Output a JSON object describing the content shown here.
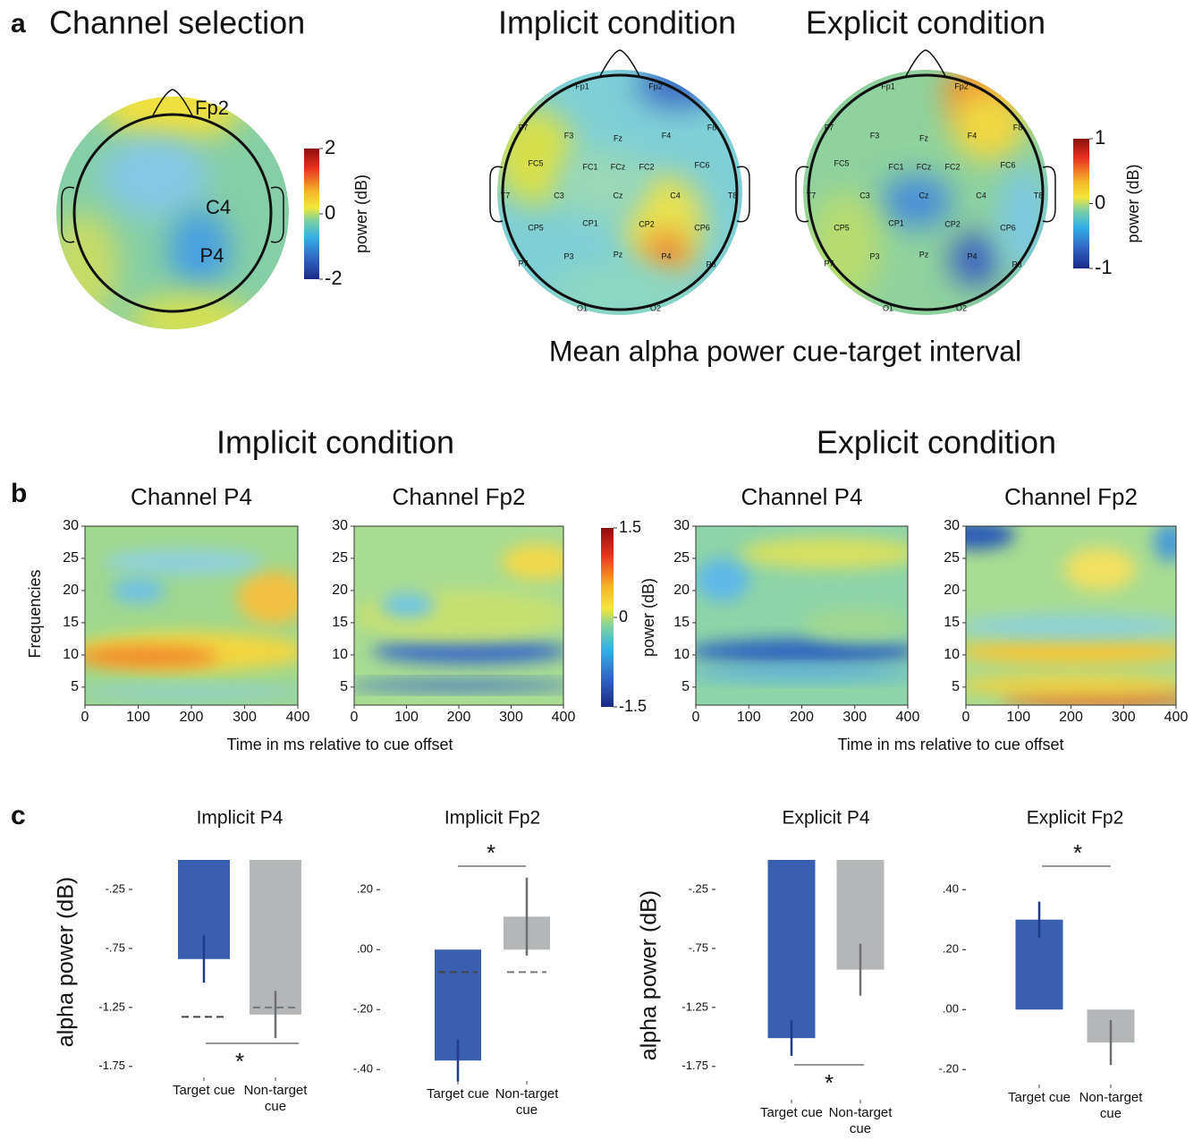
{
  "figure": {
    "panel_labels": [
      "a",
      "b",
      "c"
    ],
    "caption": "Mean alpha power cue-target interval",
    "group_titles": [
      "Implicit condition",
      "Explicit condition"
    ]
  },
  "chart_data": [
    {
      "type": "topomap",
      "title": "Channel selection",
      "channels": [
        "Fp2",
        "C4",
        "P4"
      ],
      "clim": [
        -2,
        2
      ],
      "cticks": [
        -2,
        0,
        2
      ],
      "colorbar_label": "power (dB)"
    },
    {
      "type": "topomap",
      "title": "Implicit condition",
      "channels": [
        "Fp1",
        "Fp2",
        "F7",
        "F3",
        "Fz",
        "F4",
        "F8",
        "FC5",
        "FC1",
        "FCz",
        "FC2",
        "FC6",
        "T7",
        "C3",
        "Cz",
        "C4",
        "T8",
        "CP5",
        "CP1",
        "CP2",
        "CP6",
        "P7",
        "P3",
        "Pz",
        "P4",
        "P8",
        "O1",
        "O2"
      ]
    },
    {
      "type": "topomap",
      "title": "Explicit condition",
      "channels": [
        "Fp1",
        "Fp2",
        "F7",
        "F3",
        "Fz",
        "F4",
        "F8",
        "FC5",
        "FC1",
        "FCz",
        "FC2",
        "FC6",
        "T7",
        "C3",
        "Cz",
        "C4",
        "T8",
        "CP5",
        "CP1",
        "CP2",
        "CP6",
        "P7",
        "P3",
        "Pz",
        "P4",
        "P8",
        "O1",
        "O2"
      ],
      "clim": [
        -1,
        1
      ],
      "cticks": [
        -1,
        0,
        1
      ],
      "colorbar_label": "power (dB)"
    },
    {
      "type": "heatmap",
      "title": "Channel P4",
      "ylabel": "Frequencies",
      "xlabel": "Time in ms relative to cue offset",
      "xlim": [
        0,
        400
      ],
      "xticks": [
        0,
        100,
        200,
        300,
        400
      ],
      "ylim": [
        2.2,
        30
      ],
      "yticks": [
        5,
        10,
        15,
        20,
        25,
        30
      ]
    },
    {
      "type": "heatmap",
      "title": "Channel Fp2",
      "xlim": [
        0,
        400
      ],
      "xticks": [
        0,
        100,
        200,
        300,
        400
      ],
      "ylim": [
        2.2,
        30
      ],
      "yticks": [
        5,
        10,
        15,
        20,
        25,
        30
      ],
      "clim": [
        -1.5,
        1.5
      ],
      "cticks": [
        -1.5,
        0,
        1.5
      ],
      "colorbar_label": "power (dB)"
    },
    {
      "type": "heatmap",
      "title": "Channel P4",
      "xlabel": "Time in ms relative to cue offset",
      "xlim": [
        0,
        400
      ],
      "xticks": [
        0,
        100,
        200,
        300,
        400
      ],
      "ylim": [
        2.2,
        30
      ],
      "yticks": [
        5,
        10,
        15,
        20,
        25,
        30
      ]
    },
    {
      "type": "heatmap",
      "title": "Channel Fp2",
      "xlim": [
        0,
        400
      ],
      "xticks": [
        0,
        100,
        200,
        300,
        400
      ],
      "ylim": [
        2.2,
        30
      ],
      "yticks": [
        5,
        10,
        15,
        20,
        25,
        30
      ]
    },
    {
      "type": "bar",
      "title": "Implicit P4",
      "ylabel": "alpha power (dB)",
      "categories": [
        "Target cue",
        "Non-target cue"
      ],
      "values": [
        -0.84,
        -1.31
      ],
      "errors": [
        0.2,
        0.2
      ],
      "reference_values": [
        -1.33,
        -1.25
      ],
      "colors": [
        "#3a5fb0",
        "#b5b6b8"
      ],
      "ylim": [
        -1.85,
        0
      ],
      "yticks": [
        {
          "value": -0.25,
          "label": "-.25"
        },
        {
          "value": -0.75,
          "label": "-.75"
        },
        {
          "value": -1.25,
          "label": "-1.25"
        },
        {
          "value": -1.75,
          "label": "-1.75"
        }
      ],
      "significance": "*"
    },
    {
      "type": "bar",
      "title": "Implicit Fp2",
      "categories": [
        "Target cue",
        "Non-target cue"
      ],
      "values": [
        -0.37,
        0.11
      ],
      "errors": [
        0.07,
        0.13
      ],
      "reference_values": [
        -0.075,
        -0.075
      ],
      "colors": [
        "#3a5fb0",
        "#b5b6b8"
      ],
      "ylim": [
        -0.45,
        0.32
      ],
      "yticks": [
        {
          "value": 0.2,
          "label": ".20"
        },
        {
          "value": 0,
          "label": ".00"
        },
        {
          "value": -0.2,
          "label": "-.20"
        },
        {
          "value": -0.4,
          "label": "-.40"
        }
      ],
      "significance": "*"
    },
    {
      "type": "bar",
      "title": "Explicit P4",
      "ylabel": "alpha power (dB)",
      "categories": [
        "Target cue",
        "Non-target cue"
      ],
      "values": [
        -1.51,
        -0.93
      ],
      "errors": [
        0.15,
        0.22
      ],
      "colors": [
        "#3a5fb0",
        "#b5b6b8"
      ],
      "ylim": [
        -1.85,
        0
      ],
      "yticks": [
        {
          "value": -0.25,
          "label": "-.25"
        },
        {
          "value": -0.75,
          "label": "-.75"
        },
        {
          "value": -1.25,
          "label": "-1.25"
        },
        {
          "value": -1.75,
          "label": "-1.75"
        }
      ],
      "significance": "*"
    },
    {
      "type": "bar",
      "title": "Explicit Fp2",
      "categories": [
        "Target cue",
        "Non-target cue"
      ],
      "values": [
        0.3,
        -0.11
      ],
      "errors": [
        0.06,
        0.075
      ],
      "colors": [
        "#3a5fb0",
        "#b5b6b8"
      ],
      "ylim": [
        -0.25,
        0.52
      ],
      "yticks": [
        {
          "value": 0.4,
          "label": ".40"
        },
        {
          "value": 0.2,
          "label": ".20"
        },
        {
          "value": 0,
          "label": ".00"
        },
        {
          "value": -0.2,
          "label": "-.20"
        }
      ],
      "significance": "*"
    }
  ]
}
